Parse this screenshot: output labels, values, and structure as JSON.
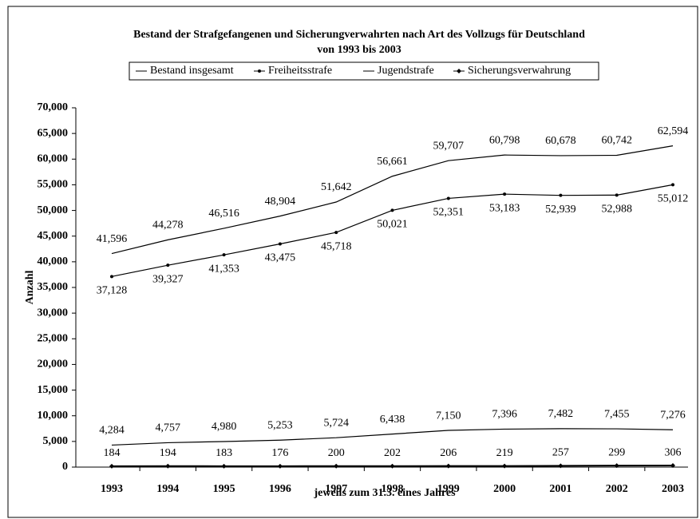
{
  "chart_data": {
    "type": "line",
    "title": "Bestand der Strafgefangenen und Sicherungverwahrten nach Art des Vollzugs für Deutschland",
    "subtitle": "von 1993 bis 2003",
    "xlabel": "jeweils zum 31.3. eines Jahres",
    "ylabel": "Anzahl",
    "categories": [
      "1993",
      "1994",
      "1995",
      "1996",
      "1997",
      "1998",
      "1999",
      "2000",
      "2001",
      "2002",
      "2003"
    ],
    "ylim": [
      0,
      70000
    ],
    "yticks": [
      0,
      {
        "value": 5000,
        "label": "5,000"
      },
      {
        "value": 10000,
        "label": "10,000"
      },
      {
        "value": 15000,
        "label": "15,000"
      },
      {
        "value": 20000,
        "label": "20,000"
      },
      {
        "value": 25000,
        "label": "25,000"
      },
      {
        "value": 30000,
        "label": "30,000"
      },
      {
        "value": 35000,
        "label": "35,000"
      },
      {
        "value": 40000,
        "label": "40,000"
      },
      {
        "value": 45000,
        "label": "45,000"
      },
      {
        "value": 50000,
        "label": "50,000"
      },
      {
        "value": 55000,
        "label": "55,000"
      },
      {
        "value": 60000,
        "label": "60,000"
      },
      {
        "value": 65000,
        "label": "65,000"
      },
      {
        "value": 70000,
        "label": "70,000"
      }
    ],
    "series": [
      {
        "name": "Bestand insgesamt",
        "color": "#000000",
        "values": [
          41596,
          44278,
          46516,
          48904,
          51642,
          56661,
          59707,
          60798,
          60678,
          60742,
          62594
        ],
        "value_labels": [
          "41,596",
          "44,278",
          "46,516",
          "48,904",
          "51,642",
          "56,661",
          "59,707",
          "60,798",
          "60,678",
          "60,742",
          "62,594"
        ]
      },
      {
        "name": "Freiheitsstrafe",
        "color": "#000000",
        "values": [
          37128,
          39327,
          41353,
          43475,
          45718,
          50021,
          52351,
          53183,
          52939,
          52988,
          55012
        ],
        "value_labels": [
          "37,128",
          "39,327",
          "41,353",
          "43,475",
          "45,718",
          "50,021",
          "52,351",
          "53,183",
          "52,939",
          "52,988",
          "55,012"
        ]
      },
      {
        "name": "Jugendstrafe",
        "color": "#000000",
        "values": [
          4284,
          4757,
          4980,
          5253,
          5724,
          6438,
          7150,
          7396,
          7482,
          7455,
          7276
        ],
        "value_labels": [
          "4,284",
          "4,757",
          "4,980",
          "5,253",
          "5,724",
          "6,438",
          "7,150",
          "7,396",
          "7,482",
          "7,455",
          "7,276"
        ]
      },
      {
        "name": "Sicherungsverwahrung",
        "color": "#000000",
        "values": [
          184,
          194,
          183,
          176,
          200,
          202,
          206,
          219,
          257,
          299,
          306
        ]
      }
    ]
  }
}
